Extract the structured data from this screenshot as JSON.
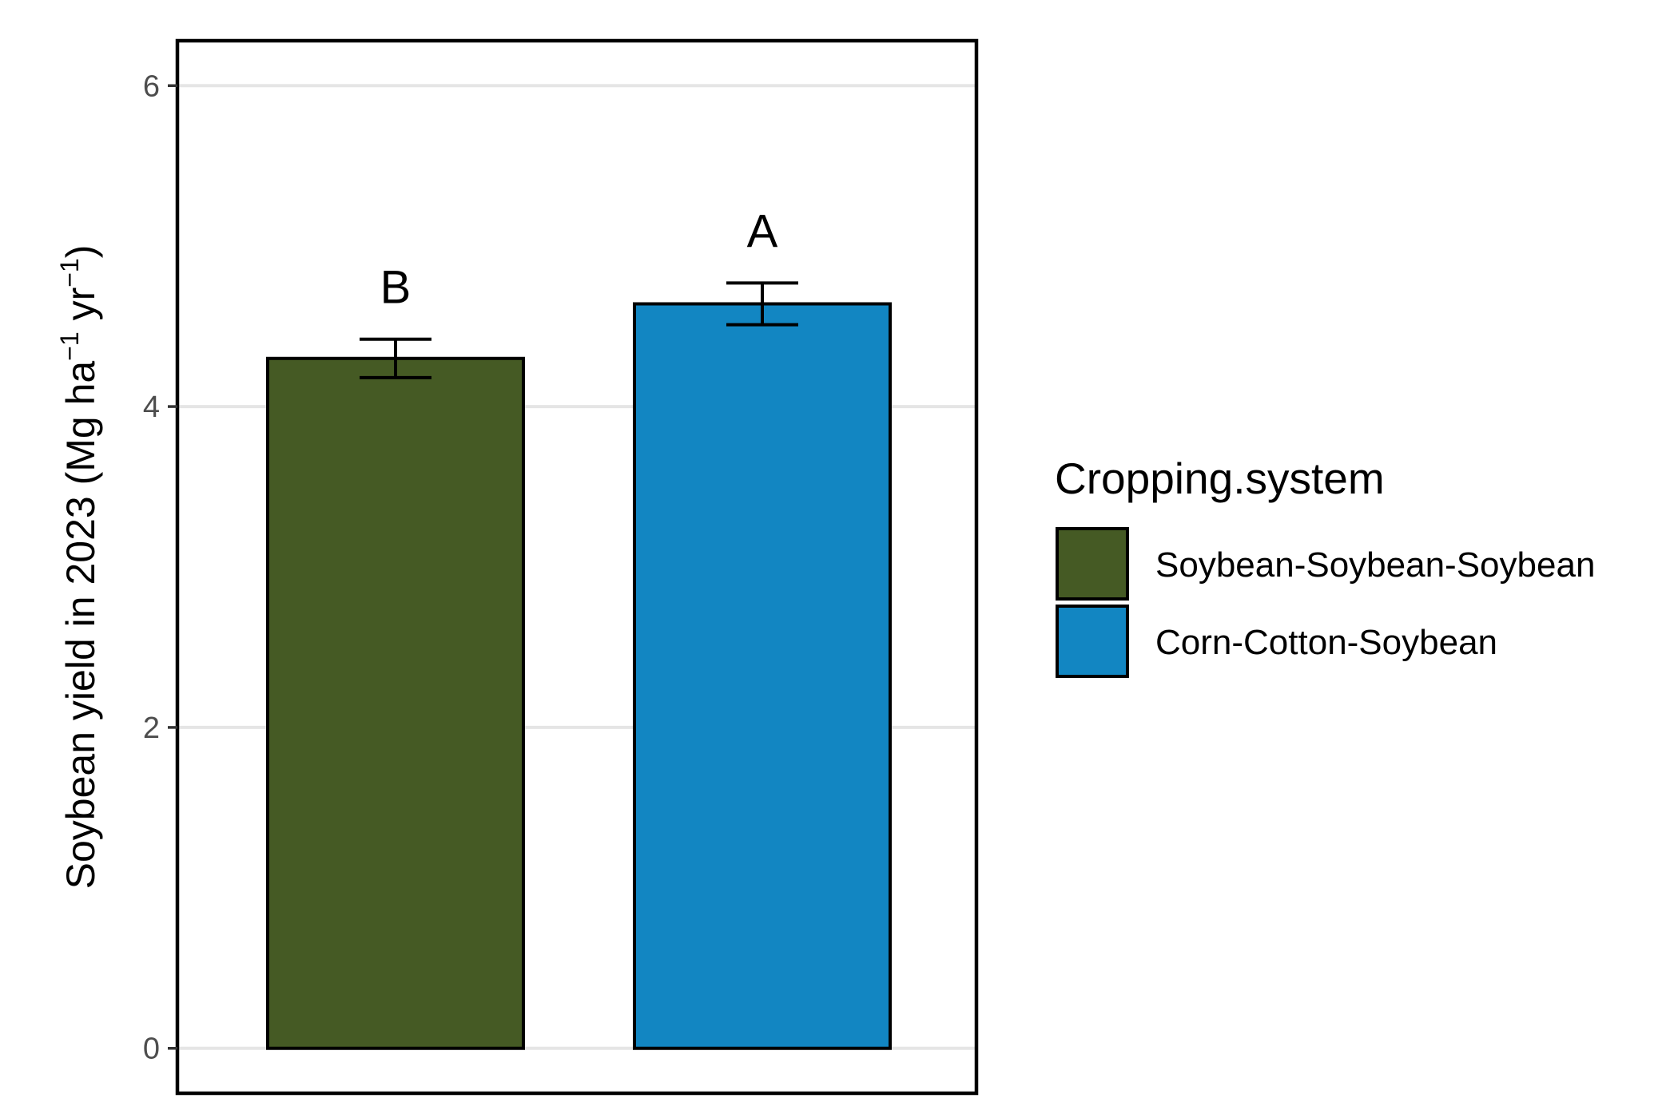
{
  "chart_data": {
    "type": "bar",
    "title": "",
    "xlabel": "",
    "ylabel": {
      "prefix": "Soybean yield in 2023 (Mg ha",
      "sup1": "−1",
      "middle": " yr",
      "sup2": "−1",
      "suffix": ")"
    },
    "ylim": [
      -0.28,
      6.28
    ],
    "yticks": [
      0,
      2,
      4,
      6
    ],
    "ytick_labels": [
      "0",
      "2",
      "4",
      "6"
    ],
    "grid": "horizontal major",
    "categories": [
      "Soybean-Soybean-Soybean",
      "Corn-Cotton-Soybean"
    ],
    "values": [
      4.3,
      4.64
    ],
    "error_low": [
      4.18,
      4.51
    ],
    "error_high": [
      4.42,
      4.77
    ],
    "significance_letters": [
      "B",
      "A"
    ],
    "colors": [
      "#455a24",
      "#1286c2"
    ],
    "legend": {
      "title": "Cropping.system",
      "placement": "right",
      "entries": [
        "Soybean-Soybean-Soybean",
        "Corn-Cotton-Soybean"
      ]
    }
  }
}
